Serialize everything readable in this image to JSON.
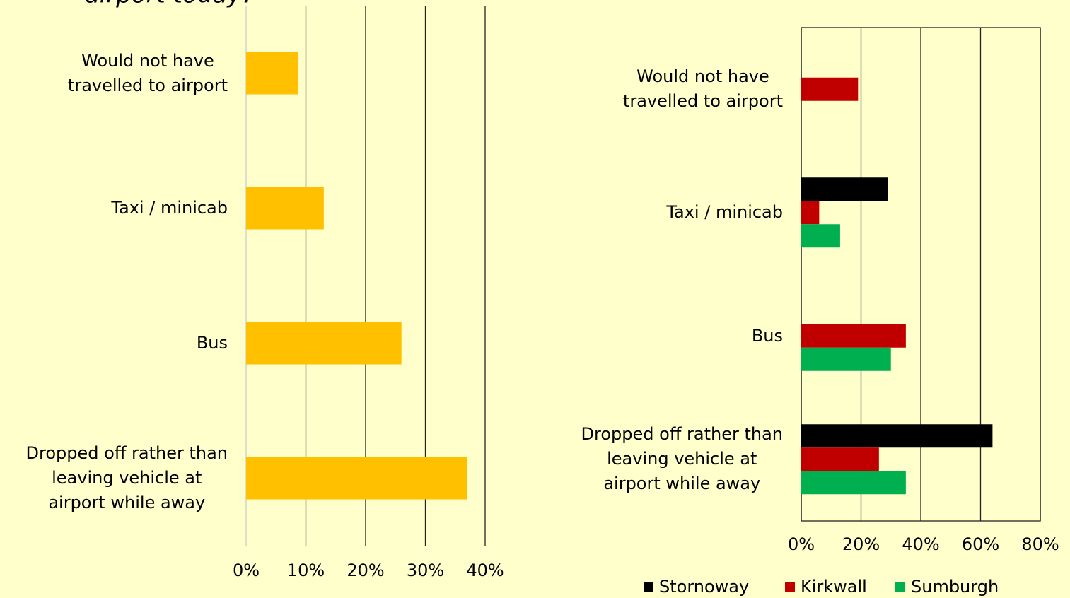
{
  "chart_data": [
    {
      "type": "bar",
      "orientation": "horizontal",
      "title": "airport today?",
      "categories": [
        "Would not have\ntravelled to airport",
        "Taxi / minicab",
        "Bus",
        "Dropped off rather than\nleaving vehicle at\nairport while away"
      ],
      "values": [
        8.7,
        13,
        26,
        37
      ],
      "color": "#ffc000",
      "xlim": [
        0,
        40
      ],
      "xticks": [
        {
          "value": 0,
          "label": "0%"
        },
        {
          "value": 10,
          "label": "10%"
        },
        {
          "value": 20,
          "label": "20%"
        },
        {
          "value": 30,
          "label": "30%"
        },
        {
          "value": 40,
          "label": "40%"
        }
      ],
      "grid": true
    },
    {
      "type": "bar",
      "orientation": "horizontal",
      "categories": [
        "Would not have\ntravelled to airport",
        "Taxi / minicab",
        "Bus",
        "Dropped off rather than\nleaving vehicle at\nairport while away"
      ],
      "series": [
        {
          "name": "Stornoway",
          "color": "#000000",
          "values": [
            null,
            29,
            null,
            64
          ]
        },
        {
          "name": "Kirkwall",
          "color": "#c00000",
          "values": [
            19,
            6,
            35,
            26
          ]
        },
        {
          "name": "Sumburgh",
          "color": "#00b050",
          "values": [
            null,
            13,
            30,
            35
          ]
        }
      ],
      "xlim": [
        0,
        80
      ],
      "xticks": [
        {
          "value": 0,
          "label": "0%"
        },
        {
          "value": 20,
          "label": "20%"
        },
        {
          "value": 40,
          "label": "40%"
        },
        {
          "value": 60,
          "label": "60%"
        },
        {
          "value": 80,
          "label": "80%"
        }
      ],
      "grid": true,
      "legend": "bottom"
    }
  ]
}
